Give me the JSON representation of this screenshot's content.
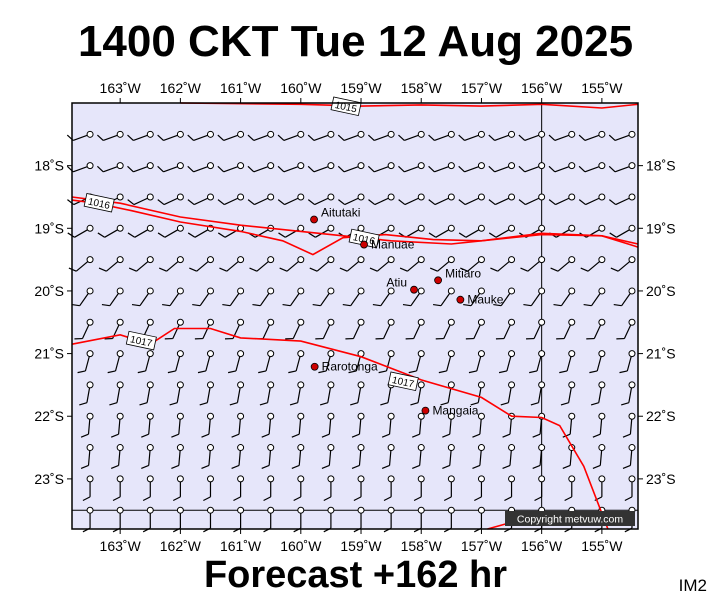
{
  "header": {
    "title": "1400 CKT Tue 12 Aug 2025"
  },
  "footer": {
    "forecast": "Forecast +162 hr",
    "image_tag": "IM2"
  },
  "copyright": "Copyright metvuw.com",
  "colors": {
    "background": "#e6e6fa",
    "isobar": "#ff0000",
    "town": "#cc0000",
    "frame": "#000000"
  },
  "map": {
    "lon_range": [
      -163.8,
      -154.4
    ],
    "lat_range": [
      -23.8,
      -17.0
    ],
    "lon_ticks": [
      "163˚W",
      "162˚W",
      "161˚W",
      "160˚W",
      "159˚W",
      "158˚W",
      "157˚W",
      "156˚W",
      "155˚W"
    ],
    "lat_ticks": [
      "18˚S",
      "19˚S",
      "20˚S",
      "21˚S",
      "22˚S",
      "23˚S"
    ],
    "lon_tick_values": [
      -163,
      -162,
      -161,
      -160,
      -159,
      -158,
      -157,
      -156,
      -155
    ],
    "lat_tick_values": [
      -18,
      -19,
      -20,
      -21,
      -22,
      -23
    ],
    "towns": [
      {
        "name": "Aitutaki",
        "lon": -159.78,
        "lat": -18.86
      },
      {
        "name": "Manuae",
        "lon": -158.95,
        "lat": -19.26
      },
      {
        "name": "Atiu",
        "lon": -158.12,
        "lat": -19.98
      },
      {
        "name": "Mitiaro",
        "lon": -157.72,
        "lat": -19.83
      },
      {
        "name": "Mauke",
        "lon": -157.35,
        "lat": -20.14
      },
      {
        "name": "Rarotonga",
        "lon": -159.77,
        "lat": -21.21
      },
      {
        "name": "Mangaia",
        "lon": -157.93,
        "lat": -21.91
      }
    ],
    "isobars": [
      {
        "label": "1015",
        "points": [
          [
            -162.0,
            -17.0
          ],
          [
            -160.0,
            -17.02
          ],
          [
            -159.0,
            -17.05
          ],
          [
            -158.0,
            -17.03
          ],
          [
            -157.0,
            -17.05
          ],
          [
            -156.0,
            -17.02
          ],
          [
            -155.0,
            -17.08
          ],
          [
            -154.4,
            -17.02
          ]
        ]
      },
      {
        "label": "1016",
        "points": [
          [
            -163.8,
            -18.5
          ],
          [
            -163.0,
            -18.6
          ],
          [
            -162.0,
            -18.82
          ],
          [
            -161.0,
            -18.95
          ],
          [
            -160.0,
            -19.05
          ],
          [
            -159.5,
            -19.1
          ],
          [
            -158.5,
            -19.2
          ],
          [
            -157.5,
            -19.25
          ],
          [
            -157.0,
            -19.2
          ],
          [
            -156.0,
            -19.1
          ],
          [
            -155.0,
            -19.12
          ],
          [
            -154.4,
            -19.25
          ]
        ]
      },
      {
        "label": "1016",
        "points": [
          [
            -163.8,
            -18.55
          ],
          [
            -163.4,
            -18.6
          ],
          [
            -162.8,
            -18.72
          ],
          [
            -162.0,
            -18.9
          ],
          [
            -161.0,
            -19.05
          ],
          [
            -160.3,
            -19.2
          ],
          [
            -159.8,
            -19.42
          ],
          [
            -159.3,
            -19.15
          ],
          [
            -158.6,
            -19.1
          ],
          [
            -157.8,
            -19.18
          ],
          [
            -157.0,
            -19.2
          ],
          [
            -156.0,
            -19.08
          ],
          [
            -155.0,
            -19.12
          ],
          [
            -154.4,
            -19.3
          ]
        ]
      },
      {
        "label": "1017",
        "points": [
          [
            -163.8,
            -20.85
          ],
          [
            -163.0,
            -20.7
          ],
          [
            -162.5,
            -20.85
          ],
          [
            -162.1,
            -20.6
          ],
          [
            -161.5,
            -20.6
          ],
          [
            -161.0,
            -20.75
          ],
          [
            -160.0,
            -20.8
          ],
          [
            -159.0,
            -21.05
          ],
          [
            -158.0,
            -21.42
          ],
          [
            -157.0,
            -21.7
          ],
          [
            -156.5,
            -22.0
          ],
          [
            -156.0,
            -22.02
          ],
          [
            -155.7,
            -22.15
          ],
          [
            -155.3,
            -22.8
          ],
          [
            -154.9,
            -23.8
          ]
        ]
      },
      {
        "label": "",
        "points": [
          [
            -156.9,
            -23.8
          ],
          [
            -156.6,
            -23.72
          ]
        ]
      }
    ],
    "isobar_labels": [
      {
        "text": "1015",
        "lon": -159.25,
        "lat": -17.06
      },
      {
        "text": "1016",
        "lon": -163.35,
        "lat": -18.6
      },
      {
        "text": "1016",
        "lon": -158.95,
        "lat": -19.17
      },
      {
        "text": "1017",
        "lon": -162.65,
        "lat": -20.8
      },
      {
        "text": "1017",
        "lon": -158.3,
        "lat": -21.45
      }
    ],
    "wind_grid": {
      "lon_start": -163.5,
      "lon_step": 0.5,
      "lon_count": 19,
      "lat_start": -17.5,
      "lat_step": -0.5,
      "lat_count": 13
    },
    "wind_rows": [
      {
        "lat": -17.5,
        "dir": 250,
        "kt": 10
      },
      {
        "lat": -18.0,
        "dir": 250,
        "kt": 10
      },
      {
        "lat": -18.5,
        "dir": 245,
        "kt": 10
      },
      {
        "lat": -19.0,
        "dir": 240,
        "kt": 10
      },
      {
        "lat": -19.5,
        "dir": 230,
        "kt": 10
      },
      {
        "lat": -20.0,
        "dir": 215,
        "kt": 10
      },
      {
        "lat": -20.5,
        "dir": 205,
        "kt": 10
      },
      {
        "lat": -21.0,
        "dir": 195,
        "kt": 10
      },
      {
        "lat": -21.5,
        "dir": 190,
        "kt": 10
      },
      {
        "lat": -22.0,
        "dir": 185,
        "kt": 10
      },
      {
        "lat": -22.5,
        "dir": 185,
        "kt": 10
      },
      {
        "lat": -23.0,
        "dir": 180,
        "kt": 10
      },
      {
        "lat": -23.5,
        "dir": 180,
        "kt": 10
      }
    ]
  }
}
